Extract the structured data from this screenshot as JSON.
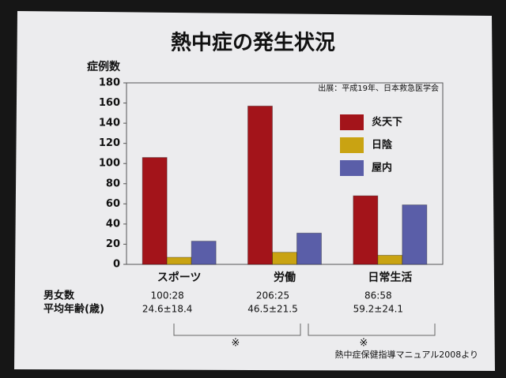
{
  "chart_data": {
    "type": "bar",
    "title": "熱中症の発生状況",
    "y_label": "症例数",
    "source": "出展：平成19年、日本救急医学会",
    "categories": [
      "スポーツ",
      "労働",
      "日常生活"
    ],
    "series": [
      {
        "name": "炎天下",
        "color": "#a3141a",
        "values": [
          106,
          157,
          68
        ]
      },
      {
        "name": "日陰",
        "color": "#c9a312",
        "values": [
          7,
          12,
          9
        ]
      },
      {
        "name": "屋内",
        "color": "#5a5ea8",
        "values": [
          23,
          31,
          59
        ]
      }
    ],
    "ylim": [
      0,
      180
    ],
    "yticks": [
      0,
      20,
      40,
      60,
      80,
      100,
      120,
      140,
      160,
      180
    ],
    "legend": "upper right"
  },
  "stats": {
    "rows": [
      {
        "label": "男女数",
        "values": [
          "100:28",
          "206:25",
          "86:58"
        ]
      },
      {
        "label": "平均年齢(歳)",
        "values": [
          "24.6±18.4",
          "46.5±21.5",
          "59.2±24.1"
        ]
      }
    ]
  },
  "annotations": [
    "※",
    "※"
  ],
  "footnote": "熱中症保健指導マニュアル2008より"
}
